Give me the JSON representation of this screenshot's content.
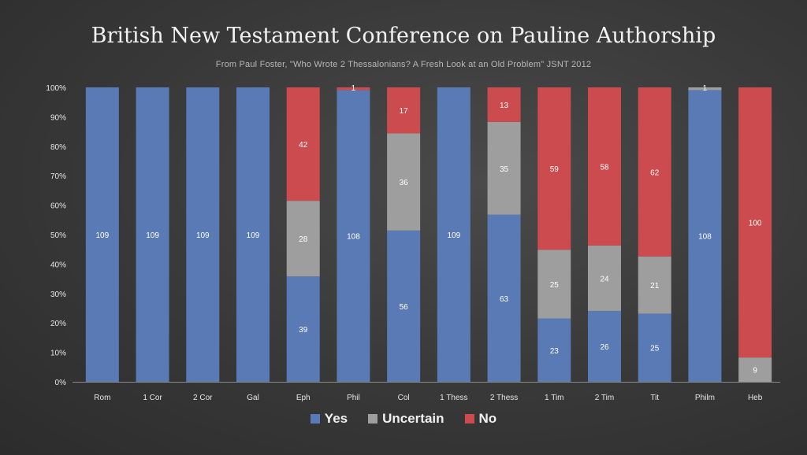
{
  "chart_data": {
    "type": "bar",
    "stacked": "percent",
    "title": "British New Testament Conference on Pauline Authorship",
    "subtitle": "From Paul Foster, \"Who Wrote 2 Thessalonians? A Fresh Look at an Old Problem\" JSNT 2012",
    "categories": [
      "Rom",
      "1 Cor",
      "2 Cor",
      "Gal",
      "Eph",
      "Phil",
      "Col",
      "1 Thess",
      "2 Thess",
      "1 Tim",
      "2 Tim",
      "Tit",
      "Philm",
      "Heb"
    ],
    "y_ticks": [
      "0%",
      "10%",
      "20%",
      "30%",
      "40%",
      "50%",
      "60%",
      "70%",
      "80%",
      "90%",
      "100%"
    ],
    "ylim": [
      0,
      100
    ],
    "series": [
      {
        "name": "Yes",
        "color": "#5a7ab5",
        "values": [
          109,
          109,
          109,
          109,
          39,
          108,
          56,
          109,
          63,
          23,
          26,
          25,
          108,
          0
        ]
      },
      {
        "name": "Uncertain",
        "color": "#9e9e9e",
        "values": [
          0,
          0,
          0,
          0,
          28,
          0,
          36,
          0,
          35,
          25,
          24,
          21,
          1,
          9
        ]
      },
      {
        "name": "No",
        "color": "#cc4b4e",
        "values": [
          0,
          0,
          0,
          0,
          42,
          1,
          17,
          0,
          13,
          59,
          58,
          62,
          0,
          100
        ]
      }
    ],
    "legend_position": "bottom",
    "grid": false
  }
}
